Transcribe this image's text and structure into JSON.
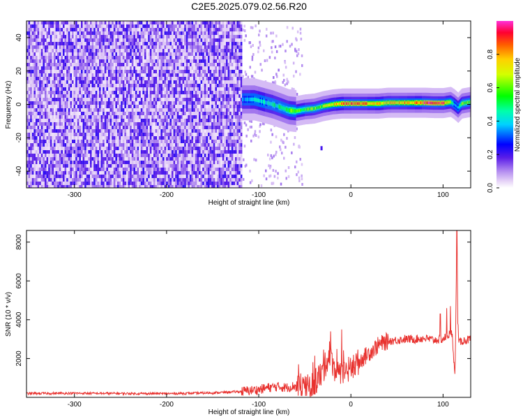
{
  "title": "C2E5.2025.079.02.56.R20",
  "chart_data": [
    {
      "type": "heatmap",
      "xlabel": "Height of straight line (km)",
      "ylabel": "Frequency (Hz)",
      "xlim": [
        -352,
        130
      ],
      "ylim": [
        -50,
        50
      ],
      "xticks": [
        -300,
        -200,
        -100,
        0,
        100
      ],
      "xtick_labels": [
        "-300",
        "-200",
        "-100",
        "0",
        "100"
      ],
      "yticks": [
        -40,
        -20,
        0,
        20,
        40
      ],
      "ytick_labels": [
        "-40",
        "-20",
        "0",
        "20",
        "40"
      ],
      "colorbar": {
        "label": "Normalized spectral amplitude",
        "range": [
          0,
          1
        ],
        "ticks": [
          0.0,
          0.2,
          0.4,
          0.6,
          0.8
        ],
        "tick_labels": [
          "0.0",
          "0.2",
          "0.4",
          "0.6",
          "0.8"
        ]
      },
      "noise_region_x": [
        -352,
        -118
      ],
      "signal_ridge": {
        "x": [
          -118,
          -105,
          -95,
          -85,
          -75,
          -68,
          -60,
          -50,
          -40,
          -30,
          -20,
          -10,
          0,
          10,
          20,
          30,
          40,
          50,
          60,
          70,
          80,
          90,
          100,
          108,
          112,
          116,
          120,
          130
        ],
        "freq": [
          3,
          3,
          1.5,
          0,
          -2,
          -3.5,
          -4,
          -3,
          -2.5,
          -1,
          0,
          0.5,
          0.5,
          0.5,
          0.5,
          0.5,
          1,
          1,
          1,
          1,
          1,
          0.8,
          0.8,
          1.5,
          0,
          -2,
          0.5,
          1.5
        ],
        "amplitude": [
          0.35,
          0.4,
          0.4,
          0.45,
          0.5,
          0.55,
          0.6,
          0.55,
          0.6,
          0.65,
          0.7,
          0.8,
          0.85,
          0.85,
          0.8,
          0.75,
          0.7,
          0.75,
          0.8,
          0.8,
          0.9,
          0.95,
          0.85,
          0.6,
          0.3,
          0.4,
          0.6,
          0.6
        ]
      },
      "grid": false
    },
    {
      "type": "line",
      "xlabel": "Height of straight line (km)",
      "ylabel": "SNR (10 * v/v)",
      "xlim": [
        -352,
        130
      ],
      "ylim": [
        0,
        8600
      ],
      "xticks": [
        -300,
        -200,
        -100,
        0,
        100
      ],
      "xtick_labels": [
        "-300",
        "-200",
        "-100",
        "0",
        "100"
      ],
      "yticks": [
        2000,
        4000,
        6000,
        8000
      ],
      "ytick_labels": [
        "2000",
        "4000",
        "6000",
        "8000"
      ],
      "color": "#e8312e",
      "series": [
        {
          "x": [
            -352,
            -300,
            -250,
            -200,
            -150,
            -120,
            -100,
            -90,
            -80,
            -70,
            -60,
            -50,
            -40,
            -30,
            -25,
            -20,
            -15,
            -10,
            -5,
            0,
            10,
            20,
            30,
            40,
            50,
            60,
            70,
            80,
            90,
            100,
            105,
            110,
            113,
            115,
            116,
            117,
            120,
            125,
            130
          ],
          "y": [
            200,
            210,
            200,
            190,
            230,
            300,
            400,
            500,
            550,
            500,
            600,
            400,
            700,
            1300,
            2100,
            1800,
            1200,
            1000,
            1300,
            1500,
            1900,
            2300,
            2700,
            2900,
            2950,
            3000,
            3000,
            3050,
            2950,
            3000,
            3200,
            3300,
            900,
            8500,
            4000,
            2800,
            2900,
            2950,
            3000
          ],
          "spikes": [
            {
              "x": -22,
              "y": 3400
            },
            {
              "x": -10,
              "y": 3500
            },
            {
              "x": 97,
              "y": 4300
            },
            {
              "x": 104,
              "y": 4600
            },
            {
              "x": 108,
              "y": 4700
            },
            {
              "x": 115,
              "y": 8600
            }
          ]
        }
      ],
      "grid": false
    }
  ]
}
